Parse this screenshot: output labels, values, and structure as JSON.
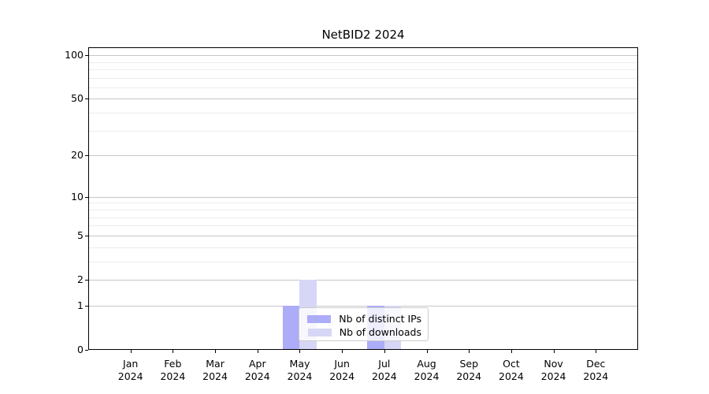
{
  "title": "NetBID2 2024",
  "chart_data": {
    "type": "bar",
    "categories": [
      "Jan",
      "Feb",
      "Mar",
      "Apr",
      "May",
      "Jun",
      "Jul",
      "Aug",
      "Sep",
      "Oct",
      "Nov",
      "Dec"
    ],
    "year": "2024",
    "series": [
      {
        "name": "Nb of distinct IPs",
        "color": "#acacf8",
        "values": [
          0,
          0,
          0,
          0,
          1,
          0,
          1,
          0,
          0,
          0,
          0,
          0
        ]
      },
      {
        "name": "Nb of downloads",
        "color": "#d6d6f6",
        "values": [
          0,
          0,
          0,
          0,
          2,
          0,
          1,
          0,
          0,
          0,
          0,
          0
        ]
      }
    ],
    "yscale": "log1p",
    "ylim": [
      0,
      113.4
    ],
    "yticks_major": [
      0,
      1,
      2,
      5,
      10,
      20,
      50,
      100
    ],
    "yticks_minor": [
      3,
      4,
      6,
      7,
      8,
      9,
      30,
      40,
      60,
      70,
      80,
      90
    ],
    "grid": "horizontal",
    "legend_position": "lower-center-inside",
    "colors": {
      "grid_major": "#c6c6c6",
      "grid_minor": "#ececec",
      "spine": "#000000",
      "text": "#000000",
      "legend_border": "#cccccc"
    }
  }
}
